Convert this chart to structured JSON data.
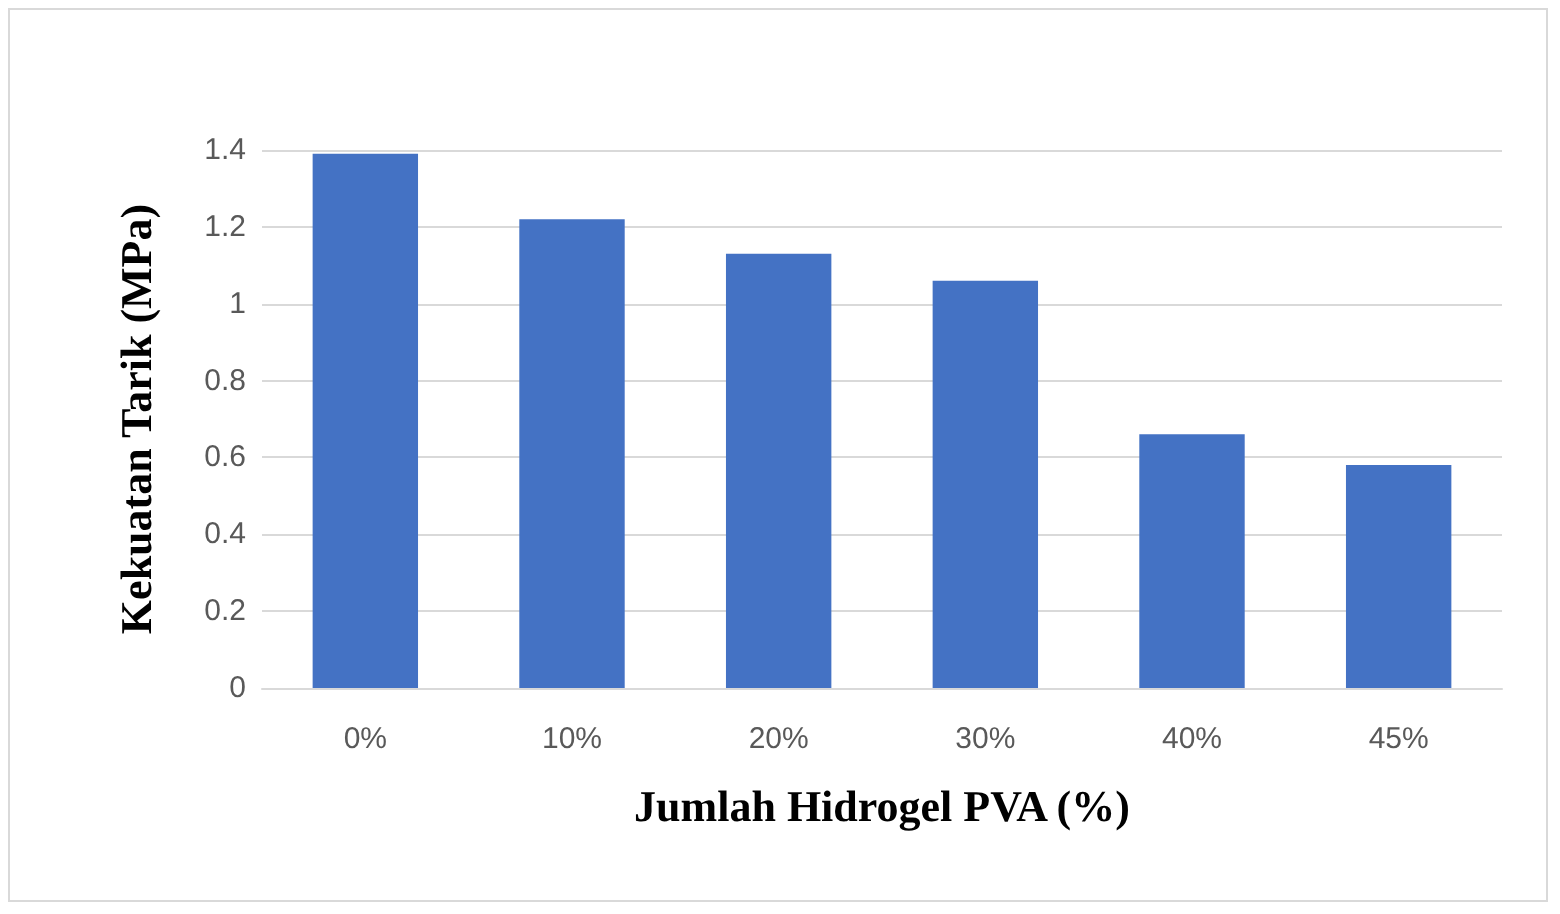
{
  "chart_data": {
    "type": "bar",
    "xlabel": "Jumlah Hidrogel PVA (%)",
    "ylabel": "Kekuatan Tarik (MPa)",
    "categories": [
      "0%",
      "10%",
      "20%",
      "30%",
      "40%",
      "45%"
    ],
    "values": [
      1.39,
      1.22,
      1.13,
      1.06,
      0.66,
      0.58
    ],
    "color": "#4472c4",
    "ylim": [
      0,
      1.4
    ],
    "yticks": [
      0,
      0.2,
      0.4,
      0.6,
      0.8,
      1,
      1.2,
      1.4
    ],
    "grid": "y"
  }
}
